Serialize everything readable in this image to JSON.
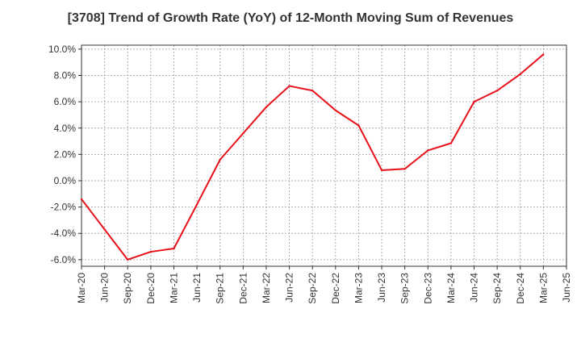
{
  "chart_data": {
    "type": "line",
    "title": "[3708]  Trend of Growth Rate (YoY) of 12-Month Moving Sum of Revenues",
    "xlabel": "",
    "ylabel": "",
    "categories": [
      "Mar-20",
      "Jun-20",
      "Sep-20",
      "Dec-20",
      "Mar-21",
      "Jun-21",
      "Sep-21",
      "Dec-21",
      "Mar-22",
      "Jun-22",
      "Sep-22",
      "Dec-22",
      "Mar-23",
      "Jun-23",
      "Sep-23",
      "Dec-23",
      "Mar-24",
      "Jun-24",
      "Sep-24",
      "Dec-24",
      "Mar-25",
      "Jun-25"
    ],
    "y_tick_labels": [
      "10.0%",
      "8.0%",
      "6.0%",
      "4.0%",
      "2.0%",
      "0.0%",
      "-2.0%",
      "-4.0%",
      "-6.0%"
    ],
    "y_tick_values": [
      10,
      8,
      6,
      4,
      2,
      0,
      -2,
      -4,
      -6
    ],
    "ylim": [
      -6.5,
      10.3
    ],
    "grid": true,
    "series": [
      {
        "color": "#e8101a",
        "values": [
          -1.4,
          -3.7,
          -6.0,
          -5.4,
          -5.15,
          -1.8,
          1.6,
          3.6,
          5.6,
          7.2,
          6.85,
          5.35,
          4.2,
          0.8,
          0.9,
          2.3,
          2.85,
          6.0,
          6.85,
          8.1,
          9.6,
          null
        ]
      }
    ]
  }
}
